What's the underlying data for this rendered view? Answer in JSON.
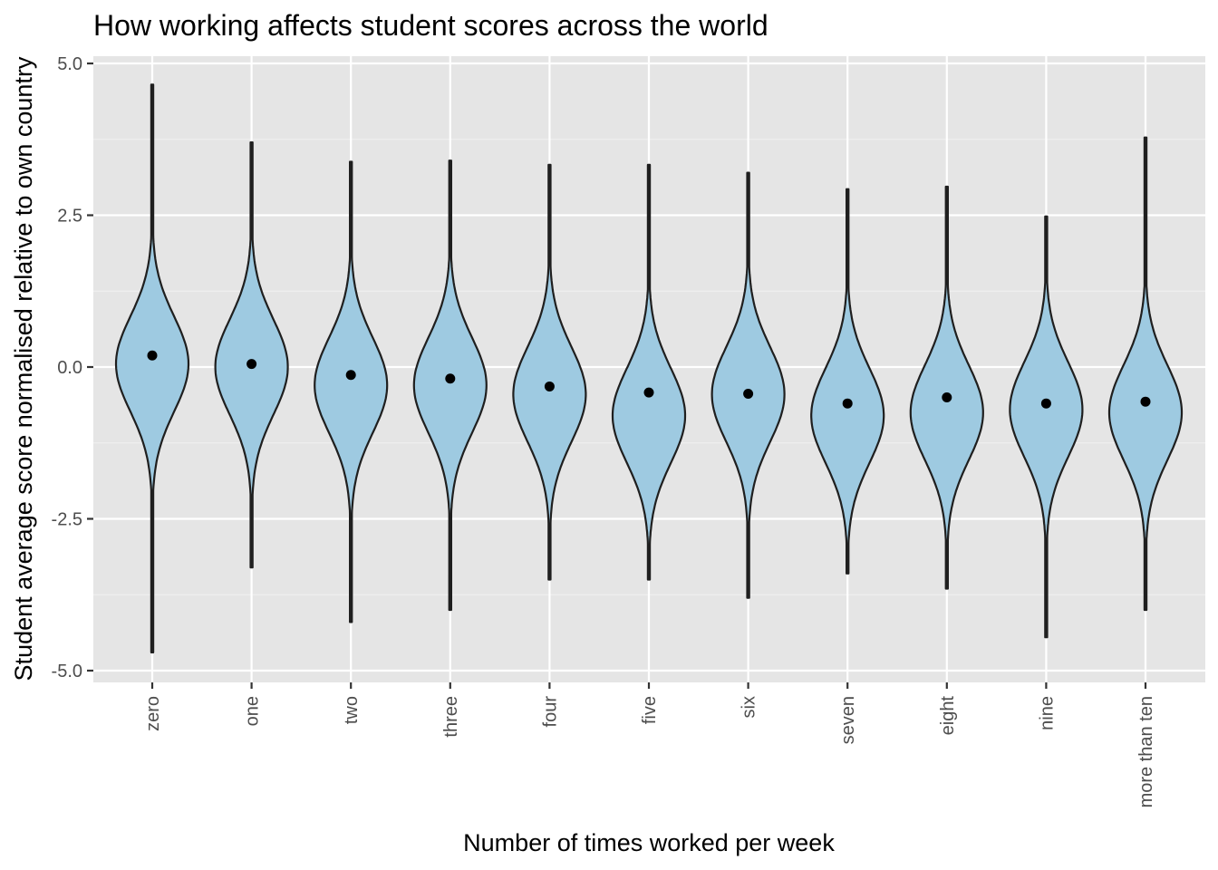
{
  "chart_data": {
    "type": "violin",
    "title": "How working affects student scores across the world",
    "xlabel": "Number of times worked per week",
    "ylabel": "Student average score normalised relative to own country",
    "categories": [
      "zero",
      "one",
      "two",
      "three",
      "four",
      "five",
      "six",
      "seven",
      "eight",
      "nine",
      "more than ten"
    ],
    "ylim": [
      -5.5,
      5.1
    ],
    "yticks": [
      5.0,
      2.5,
      0.0,
      -2.5,
      -5.0
    ],
    "ytick_labels": [
      "5.0",
      "2.5",
      "0.0",
      "-2.5",
      "-5.0"
    ],
    "means": [
      0.19,
      0.05,
      -0.13,
      -0.19,
      -0.32,
      -0.42,
      -0.44,
      -0.6,
      -0.5,
      -0.6,
      -0.57
    ],
    "min": [
      -4.7,
      -3.3,
      -4.2,
      -4.0,
      -3.5,
      -3.5,
      -3.8,
      -3.4,
      -3.65,
      -4.45,
      -4.0
    ],
    "max": [
      4.65,
      3.7,
      3.38,
      3.4,
      3.33,
      3.33,
      3.2,
      2.93,
      2.97,
      2.48,
      3.78
    ],
    "modes": [
      0.05,
      0.0,
      -0.3,
      -0.3,
      -0.45,
      -0.8,
      -0.45,
      -0.8,
      -0.75,
      -0.7,
      -0.75
    ],
    "grid": true,
    "legend": "none",
    "colors": {
      "violin_fill": "#9ecae1",
      "violin_stroke": "#1f1f1f",
      "mean_point": "#000000",
      "panel_background": "#e5e5e5",
      "gridline": "#ffffff"
    }
  }
}
